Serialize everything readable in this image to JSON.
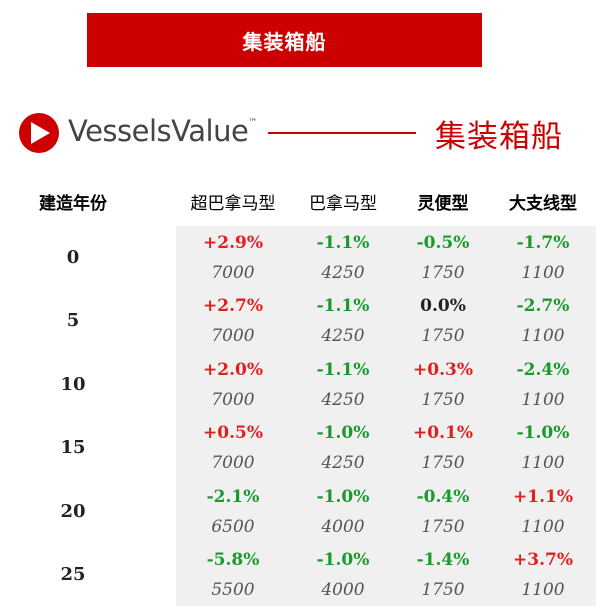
{
  "banner": {
    "title": "集装箱船"
  },
  "logo": {
    "brand": "VesselsValue",
    "tm": "™",
    "subtitle": "集装箱船"
  },
  "colors": {
    "accent": "#cc0000",
    "positive": "#e02020",
    "negative": "#1a9a2a"
  },
  "chart_data": {
    "type": "table",
    "columns": [
      "建造年份",
      "超巴拿马型",
      "巴拿马型",
      "灵便型",
      "大支线型"
    ],
    "rows": [
      {
        "age": "0",
        "changes": [
          "+2.9%",
          "-1.1%",
          "-0.5%",
          "-1.7%"
        ],
        "base": [
          "7000",
          "4250",
          "1750",
          "1100"
        ]
      },
      {
        "age": "5",
        "changes": [
          "+2.7%",
          "-1.1%",
          "0.0%",
          "-2.7%"
        ],
        "base": [
          "7000",
          "4250",
          "1750",
          "1100"
        ]
      },
      {
        "age": "10",
        "changes": [
          "+2.0%",
          "-1.1%",
          "+0.3%",
          "-2.4%"
        ],
        "base": [
          "7000",
          "4250",
          "1750",
          "1100"
        ]
      },
      {
        "age": "15",
        "changes": [
          "+0.5%",
          "-1.0%",
          "+0.1%",
          "-1.0%"
        ],
        "base": [
          "7000",
          "4250",
          "1750",
          "1100"
        ]
      },
      {
        "age": "20",
        "changes": [
          "-2.1%",
          "-1.0%",
          "-0.4%",
          "+1.1%"
        ],
        "base": [
          "6500",
          "4000",
          "1750",
          "1100"
        ]
      },
      {
        "age": "25",
        "changes": [
          "-5.8%",
          "-1.0%",
          "-1.4%",
          "+3.7%"
        ],
        "base": [
          "5500",
          "4000",
          "1750",
          "1100"
        ]
      }
    ]
  }
}
